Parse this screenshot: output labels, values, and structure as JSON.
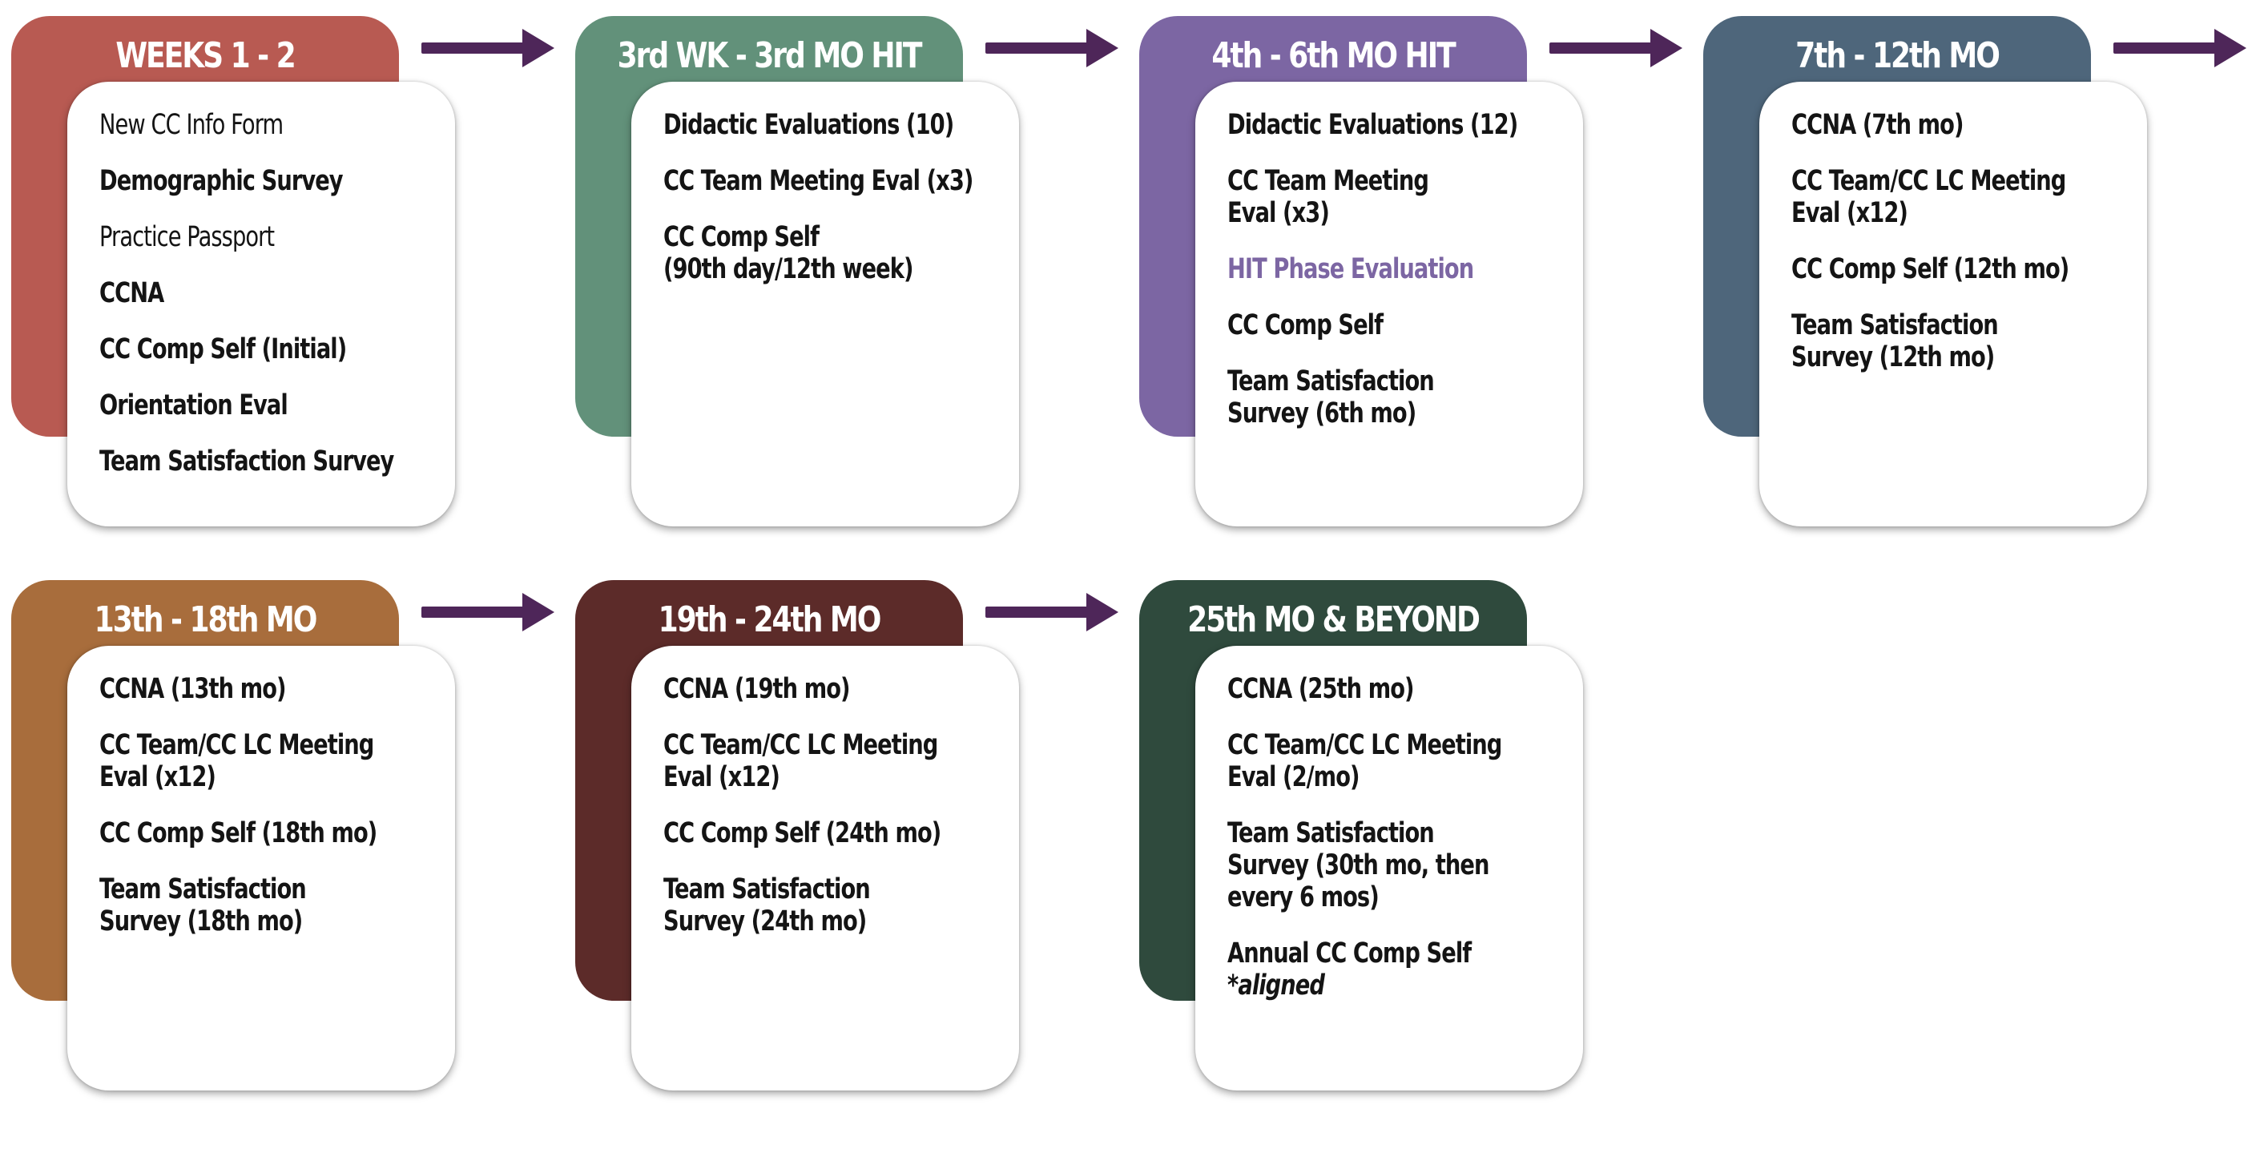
{
  "colors": {
    "arrow": "#4e2659",
    "item_text": "#141414",
    "highlight_text": "#7c66a3"
  },
  "phases": [
    {
      "title": "WEEKS 1 - 2",
      "color": "#b85a52",
      "items": [
        {
          "text": "New CC Info Form",
          "weight": "regular"
        },
        {
          "text": "Demographic Survey",
          "weight": "bold"
        },
        {
          "text": "Practice Passport",
          "weight": "regular"
        },
        {
          "text": "CCNA",
          "weight": "bold"
        },
        {
          "text": "CC Comp Self (Initial)",
          "weight": "bold"
        },
        {
          "text": "Orientation Eval",
          "weight": "bold"
        },
        {
          "text": "Team Satisfaction Survey",
          "weight": "bold"
        }
      ]
    },
    {
      "title": "3rd WK - 3rd MO HIT",
      "color": "#62917a",
      "items": [
        {
          "text": "Didactic Evaluations (10)",
          "weight": "bold"
        },
        {
          "text": "CC Team Meeting Eval (x3)",
          "weight": "bold"
        },
        {
          "text": "CC Comp Self\n(90th day/12th week)",
          "weight": "bold"
        }
      ]
    },
    {
      "title": "4th - 6th MO HIT",
      "color": "#7c66a3",
      "items": [
        {
          "text": "Didactic Evaluations (12)",
          "weight": "bold"
        },
        {
          "text": "CC Team Meeting\nEval (x3)",
          "weight": "bold"
        },
        {
          "text": "HIT Phase Evaluation",
          "weight": "bold",
          "highlight": true
        },
        {
          "text": "CC Comp Self",
          "weight": "bold"
        },
        {
          "text": "Team Satisfaction\nSurvey (6th mo)",
          "weight": "bold"
        }
      ]
    },
    {
      "title": "7th - 12th MO",
      "color": "#4e667b",
      "items": [
        {
          "text": "CCNA (7th mo)",
          "weight": "bold"
        },
        {
          "text": "CC Team/CC LC Meeting\nEval (x12)",
          "weight": "bold"
        },
        {
          "text": "CC Comp Self (12th mo)",
          "weight": "bold"
        },
        {
          "text": "Team Satisfaction\nSurvey (12th mo)",
          "weight": "bold"
        }
      ]
    },
    {
      "title": "13th - 18th MO",
      "color": "#a86d3c",
      "items": [
        {
          "text": "CCNA (13th mo)",
          "weight": "bold"
        },
        {
          "text": "CC Team/CC LC Meeting\nEval (x12)",
          "weight": "bold"
        },
        {
          "text": "CC Comp Self (18th mo)",
          "weight": "bold"
        },
        {
          "text": "Team Satisfaction\nSurvey (18th mo)",
          "weight": "bold"
        }
      ]
    },
    {
      "title": "19th - 24th MO",
      "color": "#5c2b29",
      "items": [
        {
          "text": "CCNA (19th mo)",
          "weight": "bold"
        },
        {
          "text": "CC Team/CC LC Meeting\nEval (x12)",
          "weight": "bold"
        },
        {
          "text": "CC Comp Self (24th mo)",
          "weight": "bold"
        },
        {
          "text": "Team Satisfaction\nSurvey (24th mo)",
          "weight": "bold"
        }
      ]
    },
    {
      "title": "25th MO & BEYOND",
      "color": "#2f4a3d",
      "items": [
        {
          "text": "CCNA (25th mo)",
          "weight": "bold"
        },
        {
          "text": "CC Team/CC LC Meeting\nEval (2/mo)",
          "weight": "bold"
        },
        {
          "text": "Team Satisfaction\nSurvey (30th mo, then\nevery 6 mos)",
          "weight": "bold"
        },
        {
          "text": "Annual CC Comp Self",
          "weight": "bold",
          "note": "*aligned"
        }
      ]
    }
  ]
}
